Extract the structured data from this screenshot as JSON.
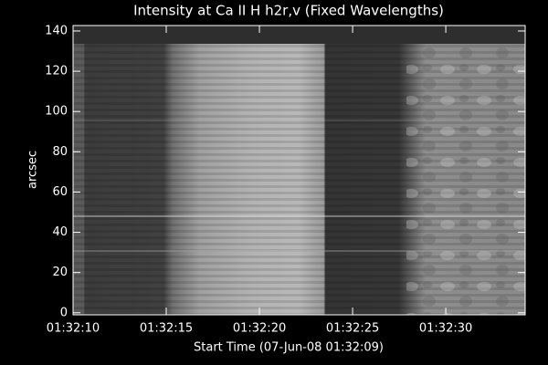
{
  "chart_data": {
    "type": "image",
    "title": "Intensity at Ca II H h2r,v (Fixed Wavelengths)",
    "x_label": "Start Time (07-Jun-08 01:32:09)",
    "y_label": "arcsec",
    "xlim": [
      "01:32:10",
      "01:32:34.26"
    ],
    "xticks": [
      "01:32:10",
      "01:32:15",
      "01:32:20",
      "01:32:25",
      "01:32:30"
    ],
    "ylim": [
      -1,
      142.7
    ],
    "yticks": [
      0,
      20,
      40,
      60,
      80,
      100,
      120,
      140
    ]
  }
}
